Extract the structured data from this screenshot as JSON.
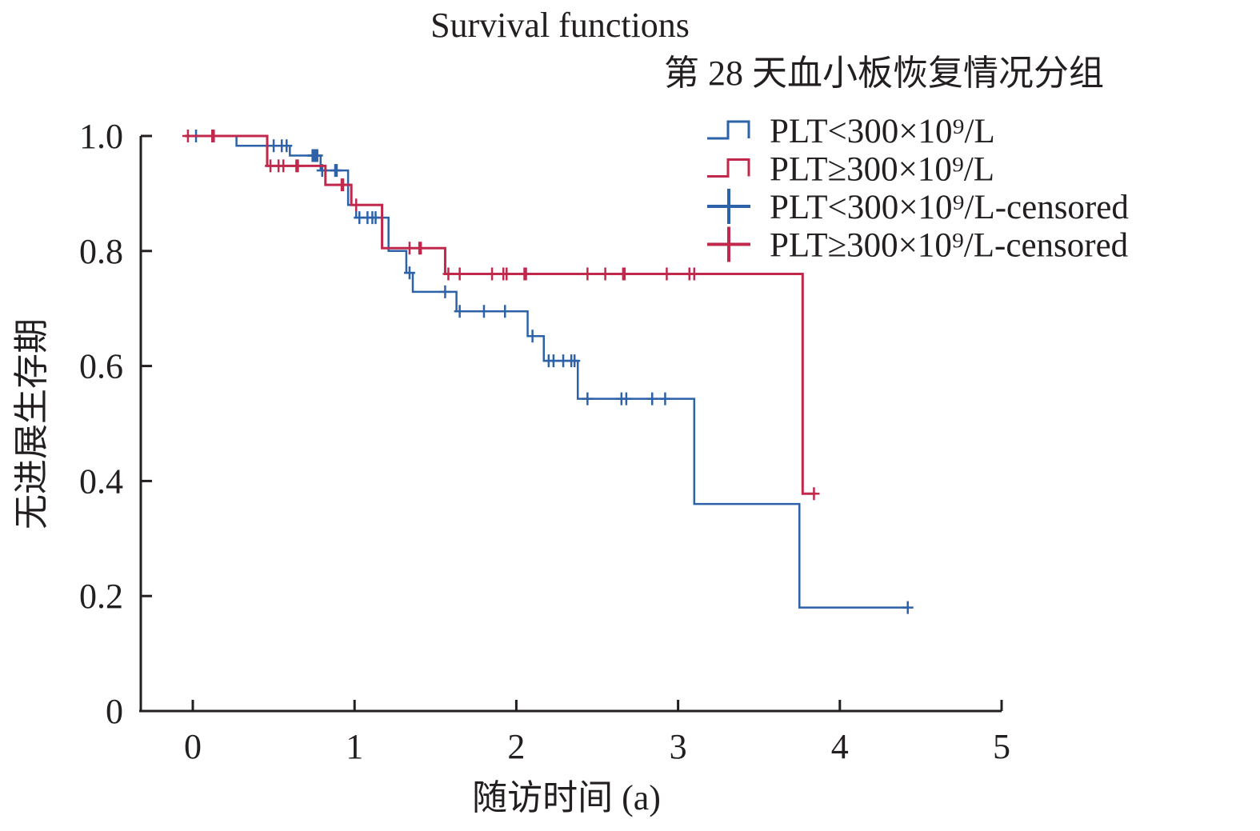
{
  "chart_data": {
    "type": "line",
    "subtype": "kaplan-meier-step",
    "title": "Survival functions",
    "legend_title": "第 28 天血小板恢复情况分组",
    "xlabel": "随访时间 (a)",
    "ylabel": "无进展生存期",
    "xlim": [
      0,
      5
    ],
    "ylim": [
      0,
      1.0
    ],
    "xticks": [
      0,
      1,
      2,
      3,
      4,
      5
    ],
    "xtick_labels": [
      "0",
      "1",
      "2",
      "3",
      "4",
      "5"
    ],
    "yticks": [
      0,
      0.2,
      0.4,
      0.6,
      0.8,
      1.0
    ],
    "ytick_labels": [
      "0",
      "0.2",
      "0.4",
      "0.6",
      "0.8",
      "1.0"
    ],
    "grid": false,
    "legend_position": "top-right",
    "legend": [
      {
        "label": "PLT<300×10⁹/L",
        "kind": "step",
        "series": 0
      },
      {
        "label": "PLT≥300×10⁹/L",
        "kind": "step",
        "series": 1
      },
      {
        "label": "PLT<300×10⁹/L-censored",
        "kind": "censor",
        "series": 0
      },
      {
        "label": "PLT≥300×10⁹/L-censored",
        "kind": "censor",
        "series": 1
      }
    ],
    "series": [
      {
        "name": "PLT<300×10⁹/L",
        "color": "#2e62a8",
        "start": [
          -0.05,
          1.0
        ],
        "steps": [
          [
            0.27,
            0.983
          ],
          [
            0.6,
            0.966
          ],
          [
            0.79,
            0.94
          ],
          [
            0.96,
            0.88
          ],
          [
            1.01,
            0.858
          ],
          [
            1.21,
            0.8
          ],
          [
            1.32,
            0.762
          ],
          [
            1.36,
            0.729
          ],
          [
            1.63,
            0.695
          ],
          [
            2.07,
            0.652
          ],
          [
            2.17,
            0.609
          ],
          [
            2.38,
            0.543
          ],
          [
            3.1,
            0.36
          ],
          [
            3.75,
            0.18
          ]
        ],
        "end_x": 4.42,
        "censored": [
          [
            0.02,
            1.0
          ],
          [
            0.13,
            1.0
          ],
          [
            0.5,
            0.983
          ],
          [
            0.55,
            0.983
          ],
          [
            0.58,
            0.983
          ],
          [
            0.74,
            0.966
          ],
          [
            0.75,
            0.966
          ],
          [
            0.76,
            0.966
          ],
          [
            0.77,
            0.966
          ],
          [
            0.8,
            0.94
          ],
          [
            0.88,
            0.94
          ],
          [
            0.89,
            0.94
          ],
          [
            1.03,
            0.858
          ],
          [
            1.08,
            0.858
          ],
          [
            1.11,
            0.858
          ],
          [
            1.13,
            0.858
          ],
          [
            1.34,
            0.762
          ],
          [
            1.56,
            0.729
          ],
          [
            1.65,
            0.695
          ],
          [
            1.8,
            0.695
          ],
          [
            1.93,
            0.695
          ],
          [
            2.1,
            0.652
          ],
          [
            2.2,
            0.609
          ],
          [
            2.23,
            0.609
          ],
          [
            2.29,
            0.609
          ],
          [
            2.34,
            0.609
          ],
          [
            2.36,
            0.609
          ],
          [
            2.44,
            0.543
          ],
          [
            2.65,
            0.543
          ],
          [
            2.68,
            0.543
          ],
          [
            2.84,
            0.543
          ],
          [
            2.92,
            0.543
          ],
          [
            4.42,
            0.18
          ]
        ]
      },
      {
        "name": "PLT≥300×10⁹/L",
        "color": "#c0284c",
        "start": [
          -0.05,
          1.0
        ],
        "steps": [
          [
            0.46,
            0.948
          ],
          [
            0.82,
            0.915
          ],
          [
            0.98,
            0.88
          ],
          [
            1.17,
            0.805
          ],
          [
            1.56,
            0.76
          ],
          [
            3.77,
            0.378
          ]
        ],
        "end_x": 3.85,
        "censored": [
          [
            -0.03,
            1.0
          ],
          [
            0.12,
            1.0
          ],
          [
            0.13,
            1.0
          ],
          [
            0.48,
            0.948
          ],
          [
            0.53,
            0.948
          ],
          [
            0.56,
            0.948
          ],
          [
            0.64,
            0.948
          ],
          [
            0.65,
            0.948
          ],
          [
            0.92,
            0.915
          ],
          [
            0.93,
            0.915
          ],
          [
            1.01,
            0.88
          ],
          [
            1.34,
            0.805
          ],
          [
            1.4,
            0.805
          ],
          [
            1.41,
            0.805
          ],
          [
            1.58,
            0.76
          ],
          [
            1.65,
            0.76
          ],
          [
            1.85,
            0.76
          ],
          [
            1.92,
            0.76
          ],
          [
            1.94,
            0.76
          ],
          [
            2.05,
            0.76
          ],
          [
            2.06,
            0.76
          ],
          [
            2.44,
            0.76
          ],
          [
            2.55,
            0.76
          ],
          [
            2.66,
            0.76
          ],
          [
            2.67,
            0.76
          ],
          [
            2.93,
            0.76
          ],
          [
            3.07,
            0.76
          ],
          [
            3.1,
            0.76
          ],
          [
            3.84,
            0.378
          ]
        ]
      }
    ]
  }
}
